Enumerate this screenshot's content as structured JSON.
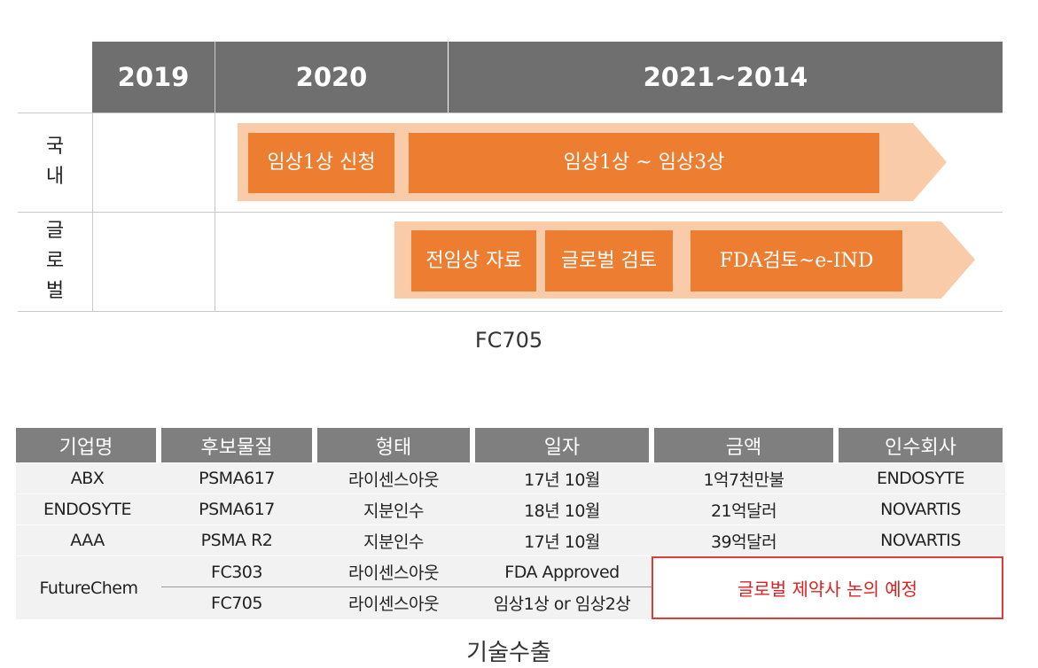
{
  "timeline": {
    "columns": [
      "2019",
      "2020",
      "2021~2014"
    ],
    "rows": [
      {
        "label": "국내",
        "items": [
          "임상1상 신청",
          "임상1상 ~ 임상3상"
        ]
      },
      {
        "label": "글로벌",
        "items": [
          "전임상 자료",
          "글로벌 검토",
          "FDA검토~e-IND"
        ]
      }
    ],
    "caption": "FC705"
  },
  "table": {
    "header": [
      "기업명",
      "후보물질",
      "형태",
      "일자",
      "금액",
      "인수회사"
    ],
    "rows": [
      [
        "ABX",
        "PSMA617",
        "라이센스아웃",
        "17년 10월",
        "1억7천만불",
        "ENDOSYTE"
      ],
      [
        "ENDOSYTE",
        "PSMA617",
        "지분인수",
        "18년 10월",
        "21억달러",
        "NOVARTIS"
      ],
      [
        "AAA",
        "PSMA R2",
        "지분인수",
        "17년 10월",
        "39억달러",
        "NOVARTIS"
      ]
    ],
    "group": {
      "company": "FutureChem",
      "rows": [
        [
          "FC303",
          "라이센스아웃",
          "FDA  Approved"
        ],
        [
          "FC705",
          "라이센스아웃",
          "임상1상 or 임상2상"
        ]
      ],
      "note": "글로벌 제약사 논의 예정"
    },
    "caption": "기술수출"
  }
}
